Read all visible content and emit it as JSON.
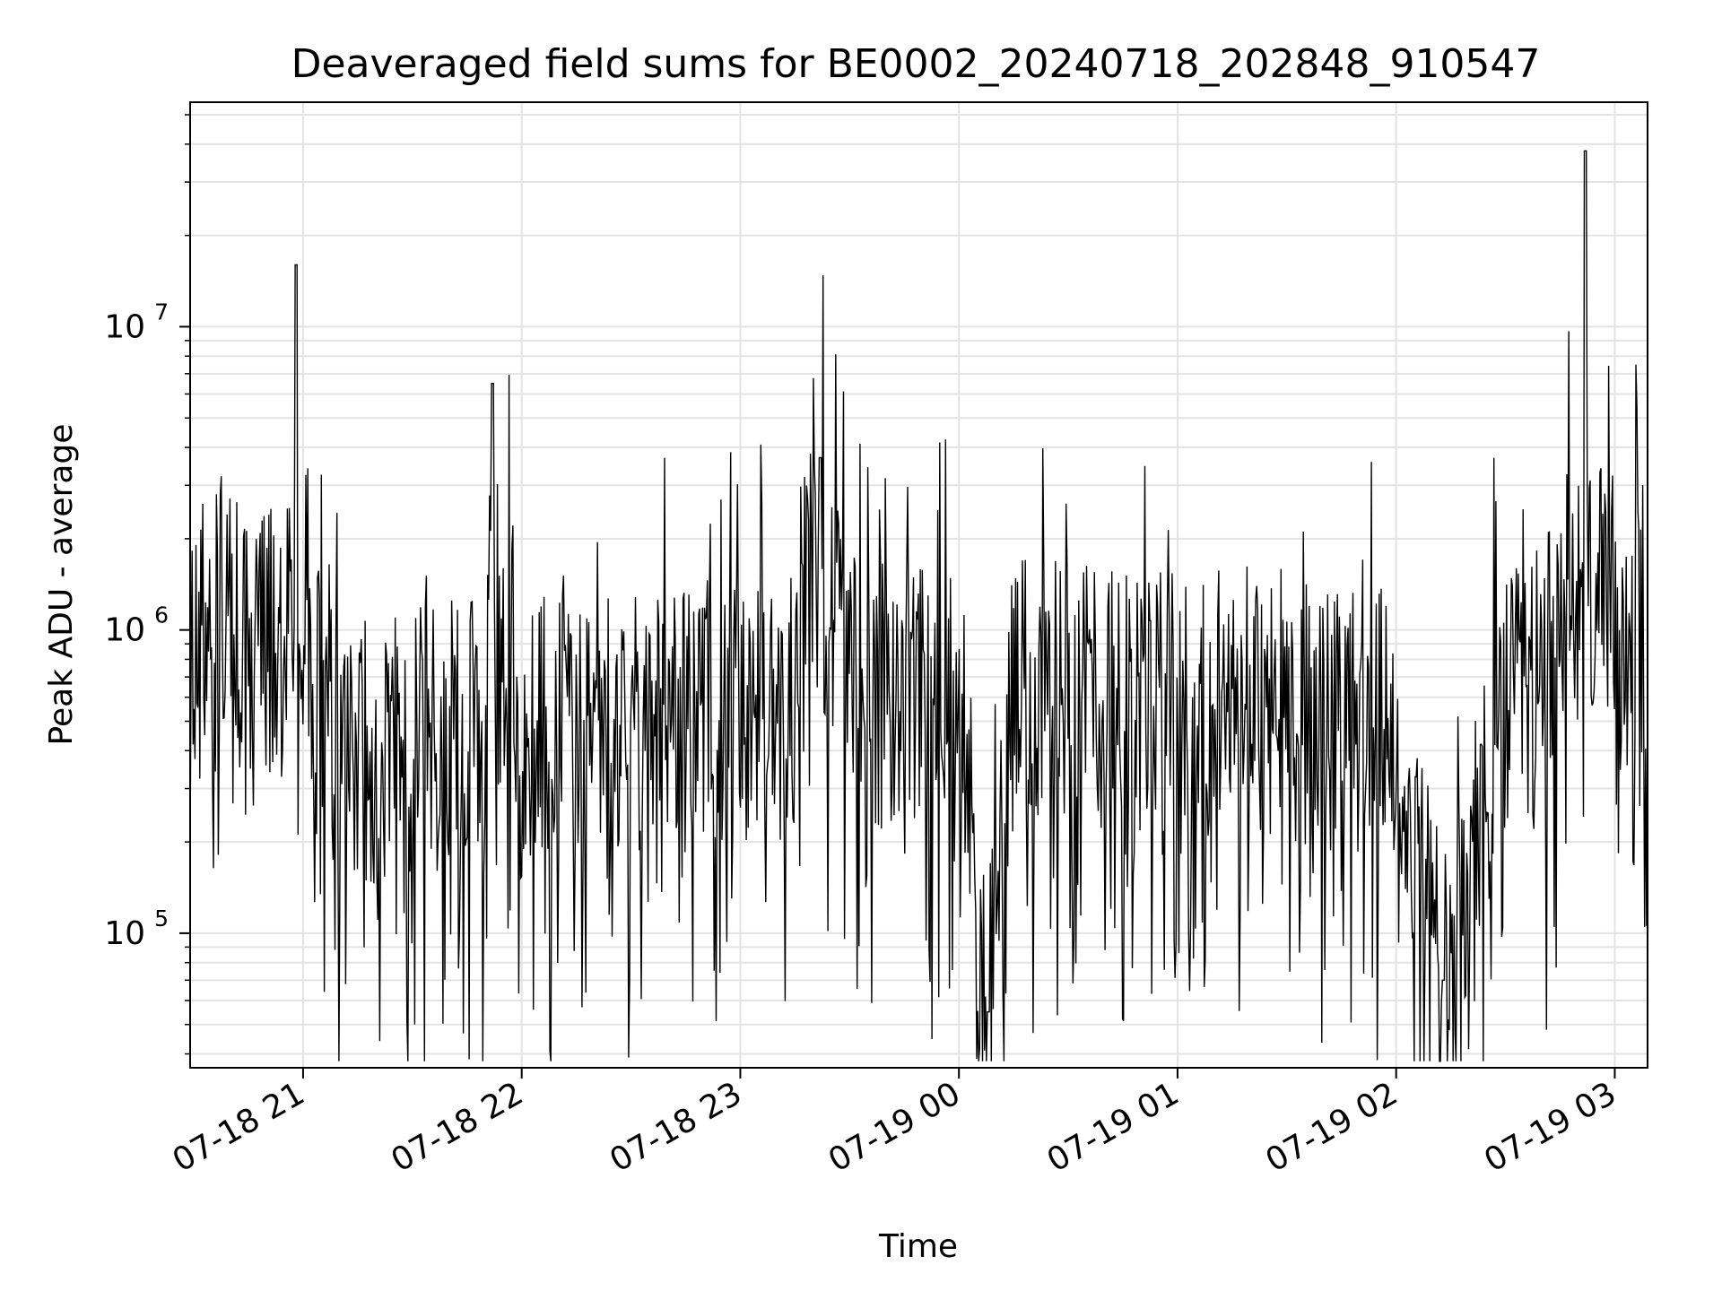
{
  "chart_data": {
    "type": "line",
    "title": "Deaveraged field sums for BE0002_20240718_202848_910547",
    "xlabel": "Time",
    "ylabel": "Peak ADU - average",
    "yscale": "log",
    "ylim": [
      36000,
      55000000
    ],
    "xlim": [
      "2024-07-18 20:29",
      "2024-07-19 03:09"
    ],
    "grid": true,
    "x_ticks": [
      {
        "value": "2024-07-18 21:00",
        "label": "07-18 21"
      },
      {
        "value": "2024-07-18 22:00",
        "label": "07-18 22"
      },
      {
        "value": "2024-07-18 23:00",
        "label": "07-18 23"
      },
      {
        "value": "2024-07-19 00:00",
        "label": "07-19 00"
      },
      {
        "value": "2024-07-19 01:00",
        "label": "07-19 01"
      },
      {
        "value": "2024-07-19 02:00",
        "label": "07-19 02"
      },
      {
        "value": "2024-07-19 03:00",
        "label": "07-19 03"
      }
    ],
    "y_ticks": [
      {
        "value": 100000,
        "base": "10",
        "exp": "5"
      },
      {
        "value": 1000000,
        "base": "10",
        "exp": "6"
      },
      {
        "value": 10000000,
        "base": "10",
        "exp": "7"
      }
    ],
    "series": [
      {
        "color": "#000000",
        "description_of_shape": "dense noisy trace",
        "x": [
          "2024-07-18 20:29",
          "2024-07-18 20:35",
          "2024-07-18 20:41",
          "2024-07-18 20:47",
          "2024-07-18 20:53",
          "2024-07-18 20:57",
          "2024-07-18 20:58",
          "2024-07-18 21:02",
          "2024-07-18 21:10",
          "2024-07-18 21:20",
          "2024-07-18 21:30",
          "2024-07-18 21:40",
          "2024-07-18 21:50",
          "2024-07-18 21:52",
          "2024-07-18 22:00",
          "2024-07-18 22:15",
          "2024-07-18 22:30",
          "2024-07-18 22:45",
          "2024-07-18 23:00",
          "2024-07-18 23:15",
          "2024-07-18 23:22",
          "2024-07-18 23:30",
          "2024-07-18 23:45",
          "2024-07-19 00:00",
          "2024-07-19 00:08",
          "2024-07-19 00:15",
          "2024-07-19 00:30",
          "2024-07-19 00:45",
          "2024-07-19 00:59",
          "2024-07-19 01:15",
          "2024-07-19 01:30",
          "2024-07-19 01:45",
          "2024-07-19 02:00",
          "2024-07-19 02:13",
          "2024-07-19 02:30",
          "2024-07-19 02:45",
          "2024-07-19 02:52",
          "2024-07-19 03:00",
          "2024-07-19 03:09"
        ],
        "y": [
          900000,
          1100000,
          950000,
          1000000,
          800000,
          1000000,
          16000000,
          700000,
          380000,
          400000,
          420000,
          450000,
          480000,
          6500000,
          480000,
          500000,
          480000,
          520000,
          540000,
          560000,
          3700000,
          620000,
          600000,
          640000,
          55000,
          600000,
          620000,
          580000,
          600000,
          560000,
          550000,
          520000,
          480000,
          70000,
          520000,
          850000,
          38000000,
          900000,
          1100000
        ]
      }
    ]
  }
}
